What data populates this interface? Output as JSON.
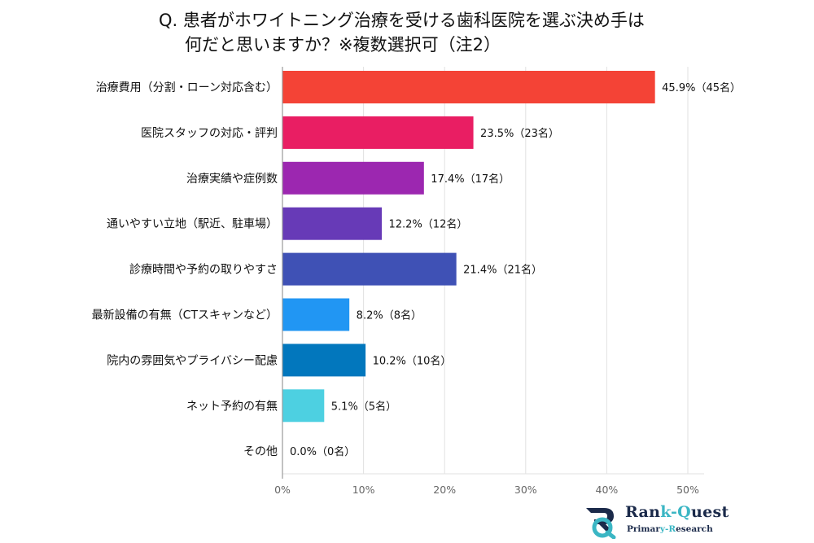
{
  "chart_data": {
    "type": "bar",
    "orientation": "horizontal",
    "title": "Q.  患者がホワイトニング治療を受ける歯科医院を選ぶ決め手は何だと思いますか？※複数選択可（注2）",
    "title_lines": [
      "Q.  患者がホワイトニング治療を受ける歯科医院を選ぶ決め手は",
      "何だと思いますか？※複数選択可（注2）"
    ],
    "categories": [
      "治療費用（分割・ローン対応含む）",
      "医院スタッフの対応・評判",
      "治療実績や症例数",
      "通いやすい立地（駅近、駐車場）",
      "診療時間や予約の取りやすさ",
      "最新設備の有無（CTスキャンなど）",
      "院内の雰囲気やプライバシー配慮",
      "ネット予約の有無",
      "その他"
    ],
    "values": [
      45.9,
      23.5,
      17.4,
      12.2,
      21.4,
      8.2,
      10.2,
      5.1,
      0.0
    ],
    "counts": [
      45,
      23,
      17,
      12,
      21,
      8,
      10,
      5,
      0
    ],
    "data_labels": [
      "45.9%（45名）",
      "23.5%（23名）",
      "17.4%（17名）",
      "12.2%（12名）",
      "21.4%（21名）",
      "8.2%（8名）",
      "10.2%（10名）",
      "5.1%（5名）",
      "0.0%（0名）"
    ],
    "colors": [
      "#f44336",
      "#e91e63",
      "#9c27b0",
      "#673ab7",
      "#3f51b5",
      "#2196f3",
      "#0277bd",
      "#4dd0e1",
      "#26c6da"
    ],
    "xlabel": "",
    "ylabel": "",
    "xlim": [
      0,
      52
    ],
    "x_ticks": [
      0,
      10,
      20,
      30,
      40,
      50
    ],
    "x_tick_labels": [
      "0%",
      "10%",
      "20%",
      "30%",
      "40%",
      "50%"
    ],
    "grid": true,
    "legend": "none"
  },
  "branding": {
    "name_part1": "Ran",
    "name_part2": "k-",
    "name_part3": "Q",
    "name_part4": "uest",
    "sub_part1": "Primar",
    "sub_part2": "y-",
    "sub_part3": "R",
    "sub_part4": "esearch",
    "logo_icon": "rq-logo-icon",
    "primary_color": "#1b2a4a",
    "accent_color": "#3bb6c4"
  }
}
